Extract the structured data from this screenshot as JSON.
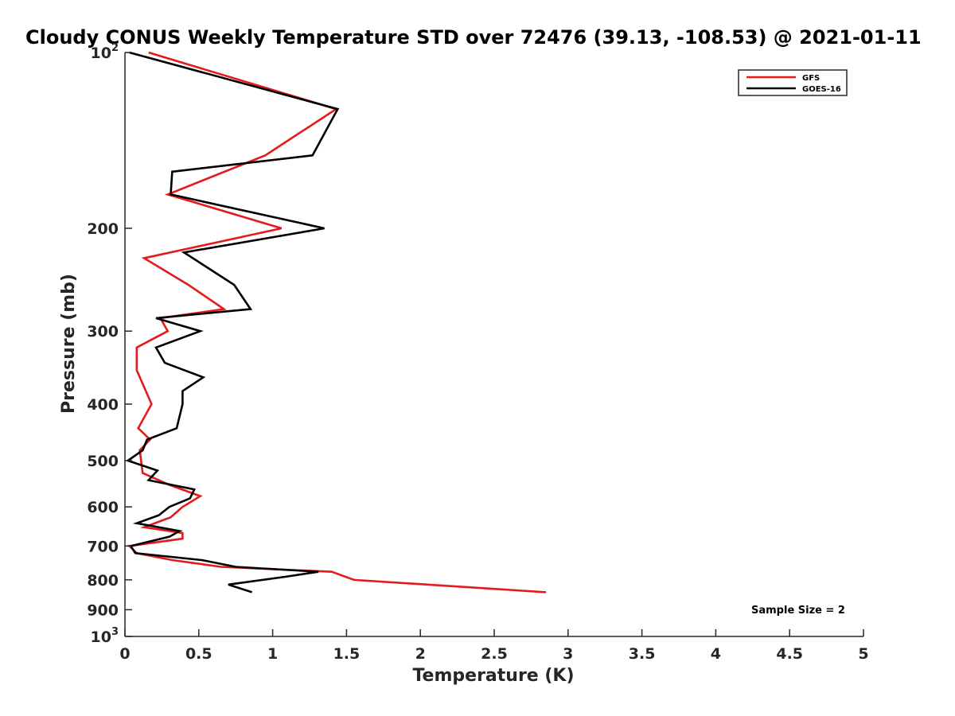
{
  "chart_data": {
    "type": "line",
    "title": "Cloudy CONUS Weekly Temperature STD over 72476 (39.13, -108.53) @ 2021-01-11",
    "xlabel": "Temperature (K)",
    "ylabel": "Pressure (mb)",
    "xlim": [
      0,
      5
    ],
    "ylim": [
      100,
      1000
    ],
    "y_scale": "log",
    "y_reversed": true,
    "grid": false,
    "legend_position": "top-right",
    "x_ticks": [
      "0",
      "0.5",
      "1",
      "1.5",
      "2",
      "2.5",
      "3",
      "3.5",
      "4",
      "4.5",
      "5"
    ],
    "y_ticks": [
      {
        "value": 100,
        "base": "10",
        "exp": "2"
      },
      {
        "value": 200,
        "label": "200"
      },
      {
        "value": 300,
        "label": "300"
      },
      {
        "value": 400,
        "label": "400"
      },
      {
        "value": 500,
        "label": "500"
      },
      {
        "value": 600,
        "label": "600"
      },
      {
        "value": 700,
        "label": "700"
      },
      {
        "value": 800,
        "label": "800"
      },
      {
        "value": 900,
        "label": "900"
      },
      {
        "value": 1000,
        "base": "10",
        "exp": "3"
      }
    ],
    "annotation": "Sample Size = 2",
    "series": [
      {
        "name": "GFS",
        "color": "#e41a1c",
        "points": [
          [
            0.16,
            100
          ],
          [
            1.43,
            125
          ],
          [
            0.95,
            150
          ],
          [
            0.29,
            175
          ],
          [
            1.06,
            200
          ],
          [
            0.13,
            225
          ],
          [
            0.43,
            250
          ],
          [
            0.67,
            275
          ],
          [
            0.24,
            285
          ],
          [
            0.29,
            300
          ],
          [
            0.08,
            320
          ],
          [
            0.08,
            350
          ],
          [
            0.18,
            400
          ],
          [
            0.09,
            440
          ],
          [
            0.17,
            460
          ],
          [
            0.1,
            480
          ],
          [
            0.12,
            525
          ],
          [
            0.3,
            550
          ],
          [
            0.51,
            575
          ],
          [
            0.39,
            600
          ],
          [
            0.31,
            625
          ],
          [
            0.13,
            650
          ],
          [
            0.39,
            665
          ],
          [
            0.39,
            680
          ],
          [
            0.03,
            700
          ],
          [
            0.08,
            720
          ],
          [
            0.32,
            740
          ],
          [
            0.65,
            760
          ],
          [
            1.4,
            775
          ],
          [
            1.55,
            800
          ],
          [
            2.85,
            840
          ]
        ]
      },
      {
        "name": "GOES-16",
        "color": "#000000",
        "points": [
          [
            0.03,
            100
          ],
          [
            1.44,
            125
          ],
          [
            1.27,
            150
          ],
          [
            0.32,
            160
          ],
          [
            0.31,
            175
          ],
          [
            1.35,
            200
          ],
          [
            0.4,
            220
          ],
          [
            0.74,
            250
          ],
          [
            0.85,
            275
          ],
          [
            0.21,
            285
          ],
          [
            0.51,
            300
          ],
          [
            0.21,
            320
          ],
          [
            0.27,
            340
          ],
          [
            0.53,
            360
          ],
          [
            0.39,
            380
          ],
          [
            0.39,
            400
          ],
          [
            0.35,
            440
          ],
          [
            0.15,
            460
          ],
          [
            0.12,
            480
          ],
          [
            0.02,
            500
          ],
          [
            0.22,
            520
          ],
          [
            0.16,
            540
          ],
          [
            0.47,
            560
          ],
          [
            0.44,
            580
          ],
          [
            0.3,
            600
          ],
          [
            0.23,
            620
          ],
          [
            0.08,
            640
          ],
          [
            0.37,
            660
          ],
          [
            0.3,
            675
          ],
          [
            0.04,
            700
          ],
          [
            0.07,
            720
          ],
          [
            0.52,
            740
          ],
          [
            0.75,
            760
          ],
          [
            1.31,
            775
          ],
          [
            1.09,
            790
          ],
          [
            0.7,
            815
          ],
          [
            0.86,
            840
          ]
        ]
      }
    ]
  }
}
